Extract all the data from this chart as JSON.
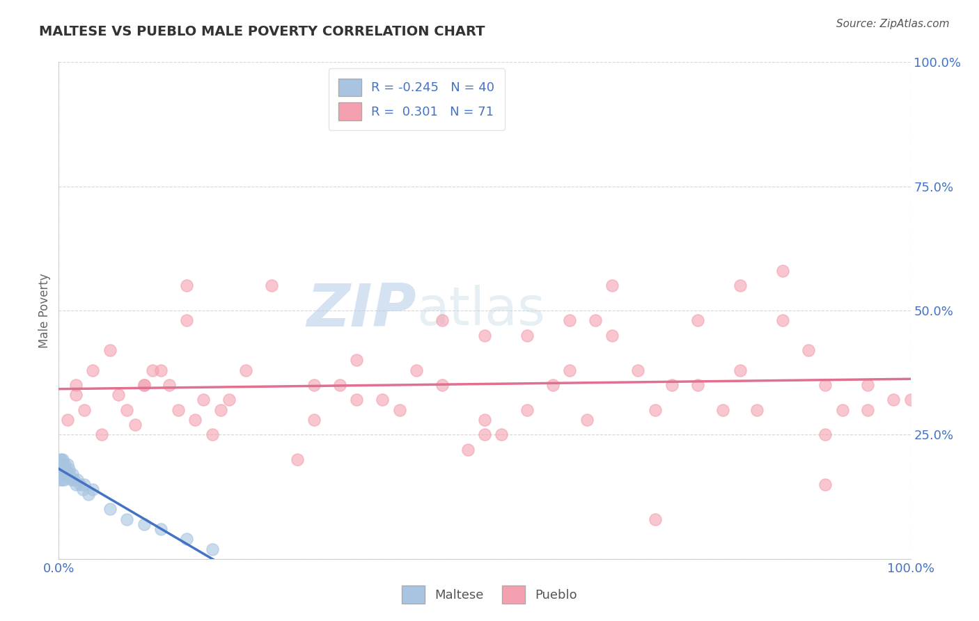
{
  "title": "MALTESE VS PUEBLO MALE POVERTY CORRELATION CHART",
  "source_text": "Source: ZipAtlas.com",
  "tick_color": "#4472c4",
  "ylabel": "Male Poverty",
  "xlim": [
    0,
    1
  ],
  "ylim": [
    0,
    1
  ],
  "background_color": "#ffffff",
  "grid_color": "#cccccc",
  "maltese_color": "#a8c4e0",
  "pueblo_color": "#f4a0b0",
  "maltese_line_color": "#4472c4",
  "pueblo_line_color": "#e07090",
  "R_maltese": -0.245,
  "N_maltese": 40,
  "R_pueblo": 0.301,
  "N_pueblo": 71,
  "watermark_zip": "ZIP",
  "watermark_atlas": "atlas",
  "maltese_x": [
    0.001,
    0.001,
    0.002,
    0.002,
    0.002,
    0.003,
    0.003,
    0.003,
    0.004,
    0.004,
    0.004,
    0.005,
    0.005,
    0.005,
    0.006,
    0.006,
    0.007,
    0.007,
    0.008,
    0.009,
    0.01,
    0.01,
    0.012,
    0.013,
    0.015,
    0.016,
    0.018,
    0.02,
    0.022,
    0.025,
    0.028,
    0.03,
    0.035,
    0.04,
    0.06,
    0.08,
    0.1,
    0.12,
    0.15,
    0.18
  ],
  "maltese_y": [
    0.18,
    0.16,
    0.2,
    0.19,
    0.17,
    0.2,
    0.18,
    0.17,
    0.19,
    0.18,
    0.16,
    0.2,
    0.19,
    0.17,
    0.18,
    0.16,
    0.19,
    0.17,
    0.18,
    0.17,
    0.19,
    0.17,
    0.18,
    0.17,
    0.16,
    0.17,
    0.16,
    0.15,
    0.16,
    0.15,
    0.14,
    0.15,
    0.13,
    0.14,
    0.1,
    0.08,
    0.07,
    0.06,
    0.04,
    0.02
  ],
  "pueblo_x": [
    0.01,
    0.02,
    0.02,
    0.03,
    0.04,
    0.05,
    0.06,
    0.07,
    0.08,
    0.09,
    0.1,
    0.11,
    0.12,
    0.13,
    0.14,
    0.15,
    0.16,
    0.17,
    0.18,
    0.19,
    0.2,
    0.22,
    0.25,
    0.28,
    0.3,
    0.33,
    0.35,
    0.38,
    0.4,
    0.42,
    0.45,
    0.48,
    0.5,
    0.52,
    0.55,
    0.58,
    0.6,
    0.62,
    0.65,
    0.68,
    0.7,
    0.72,
    0.75,
    0.78,
    0.8,
    0.82,
    0.85,
    0.88,
    0.9,
    0.92,
    0.95,
    0.98,
    1.0,
    0.45,
    0.5,
    0.55,
    0.6,
    0.63,
    0.65,
    0.75,
    0.8,
    0.85,
    0.9,
    0.95,
    0.15,
    0.35,
    0.5,
    0.7,
    0.9,
    0.1,
    0.3
  ],
  "pueblo_y": [
    0.28,
    0.33,
    0.35,
    0.3,
    0.38,
    0.25,
    0.42,
    0.33,
    0.3,
    0.27,
    0.35,
    0.38,
    0.38,
    0.35,
    0.3,
    0.55,
    0.28,
    0.32,
    0.25,
    0.3,
    0.32,
    0.38,
    0.55,
    0.2,
    0.28,
    0.35,
    0.4,
    0.32,
    0.3,
    0.38,
    0.35,
    0.22,
    0.28,
    0.25,
    0.3,
    0.35,
    0.38,
    0.28,
    0.45,
    0.38,
    0.3,
    0.35,
    0.35,
    0.3,
    0.38,
    0.3,
    0.48,
    0.42,
    0.25,
    0.3,
    0.3,
    0.32,
    0.32,
    0.48,
    0.45,
    0.45,
    0.48,
    0.48,
    0.55,
    0.48,
    0.55,
    0.58,
    0.35,
    0.35,
    0.48,
    0.32,
    0.25,
    0.08,
    0.15,
    0.35,
    0.35
  ]
}
